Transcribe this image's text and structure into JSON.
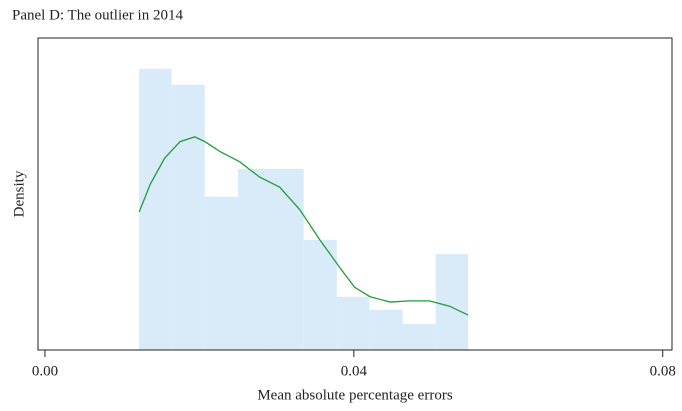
{
  "chart_data": {
    "type": "histogram",
    "title": "Panel D: The outlier in 2014",
    "xlabel": "Mean absolute percentage errors",
    "ylabel": "Density",
    "bins": [
      0.0122,
      0.0164,
      0.0207,
      0.025,
      0.0292,
      0.0335,
      0.0378,
      0.042,
      0.0463,
      0.0506,
      0.0548
    ],
    "values": [
      47.5,
      44.8,
      25.9,
      30.6,
      30.6,
      18.6,
      9.0,
      6.8,
      4.4,
      16.2
    ],
    "color": "#d9ebf8",
    "density_curve": {
      "color": "#1f9e3a",
      "x": [
        0.0122,
        0.0136,
        0.0155,
        0.0175,
        0.0194,
        0.0207,
        0.0227,
        0.0252,
        0.0278,
        0.0304,
        0.033,
        0.0356,
        0.0382,
        0.0401,
        0.0421,
        0.0447,
        0.0472,
        0.0498,
        0.0524,
        0.0548
      ],
      "values": [
        23.3,
        27.9,
        32.4,
        35.2,
        36.0,
        35.2,
        33.5,
        31.8,
        29.2,
        27.5,
        23.7,
        18.6,
        13.9,
        10.6,
        9.0,
        8.1,
        8.3,
        8.3,
        7.4,
        5.9
      ]
    },
    "xlim": [
      -0.0009,
      0.0812
    ],
    "xticks": [
      {
        "value": 0,
        "label": "0.00"
      },
      0.04,
      0.08
    ],
    "ylim": [
      0,
      52.7
    ]
  }
}
